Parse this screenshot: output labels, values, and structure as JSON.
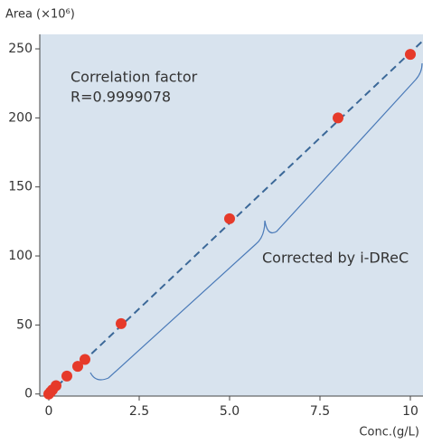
{
  "chart_data": {
    "type": "scatter",
    "y_label": "Area (×10⁶)",
    "x_label": "Conc.(g/L)",
    "annotations": [
      "Correlation factor",
      "R=0.9999078",
      "Corrected by i-DReC"
    ],
    "x": [
      0,
      0.05,
      0.1,
      0.2,
      0.5,
      0.8,
      1,
      2,
      5,
      8,
      10
    ],
    "series": [
      {
        "color": "#e63a2a",
        "values": [
          0,
          1.5,
          3,
          6,
          13,
          20,
          25,
          51,
          127,
          200,
          246
        ]
      }
    ],
    "trendline": {
      "color": "#3b6898",
      "x": [
        0,
        10.35
      ],
      "values": [
        0,
        256
      ]
    },
    "xlim": [
      -0.25,
      10.35
    ],
    "ylim": [
      -1.5,
      260.5
    ],
    "xticks": [
      0,
      2.5,
      {
        "value": 5,
        "label": "5.0"
      },
      {
        "value": 7.5,
        "label": "7.5"
      },
      10
    ],
    "yticks": [
      0,
      50,
      100,
      150,
      200,
      250
    ],
    "plot_color": "#d8e3ee"
  }
}
